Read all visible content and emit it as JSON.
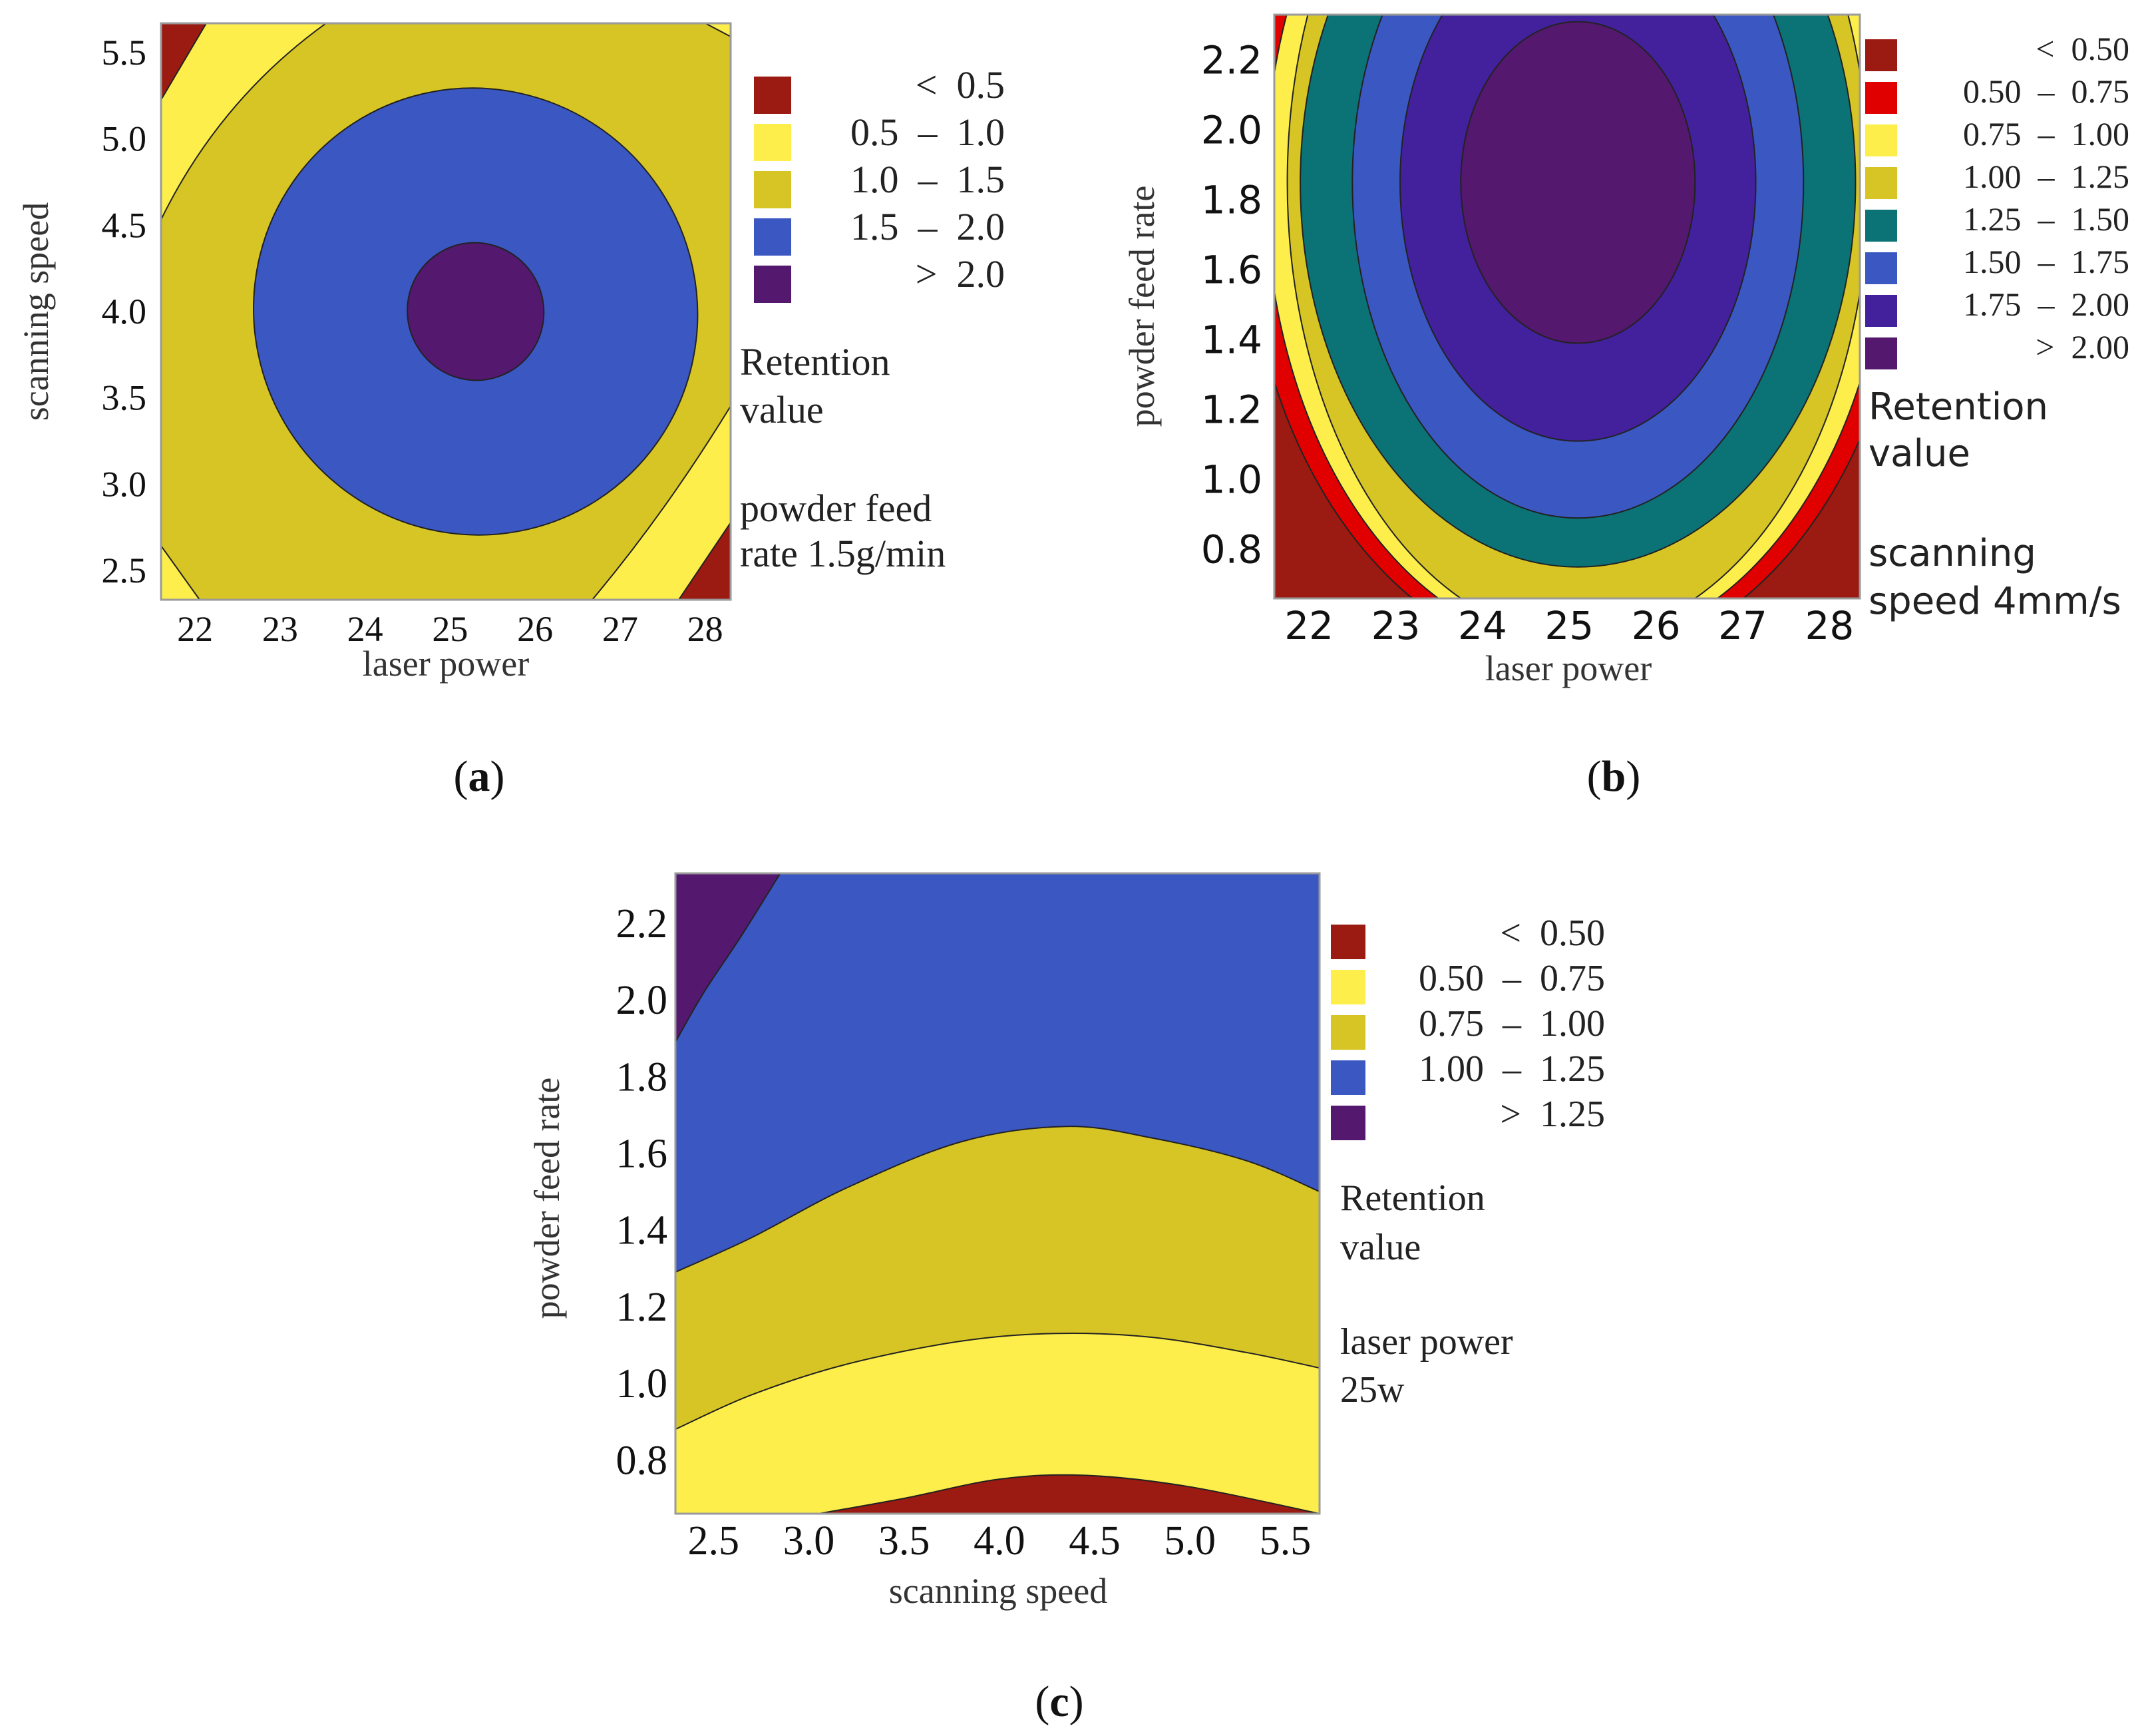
{
  "figure": {
    "panel_labels": [
      "(a)",
      "(b)",
      "(c)"
    ],
    "panel_label_letters": [
      "a",
      "b",
      "c"
    ]
  },
  "chart_data": [
    {
      "id": "a",
      "type": "contour",
      "xlabel": "laser power",
      "ylabel": "scanning speed",
      "x_ticks": [
        "22",
        "23",
        "24",
        "25",
        "26",
        "27",
        "28"
      ],
      "y_ticks": [
        "2.5",
        "3.0",
        "3.5",
        "4.0",
        "4.5",
        "5.0",
        "5.5"
      ],
      "xlim": [
        21.6,
        28.3
      ],
      "ylim": [
        2.33,
        5.67
      ],
      "legend_title": [
        "Retention",
        "value"
      ],
      "legend": [
        {
          "range": "<  0.5",
          "color": "#9b1a12"
        },
        {
          "range": "0.5  –  1.0",
          "color": "#fdee4c"
        },
        {
          "range": "1.0  –  1.5",
          "color": "#d6c524"
        },
        {
          "range": "1.5  –  2.0",
          "color": "#3b57c2"
        },
        {
          "range": ">  2.0",
          "color": "#54186e"
        }
      ],
      "hold_note": [
        "powder feed",
        "rate 1.5g/min"
      ],
      "contours": {
        "level_1_5": {
          "center": [
            25.3,
            4.0
          ],
          "x_radius": 2.6,
          "y_radius": 1.3,
          "rotation_deg": -33
        },
        "level_2_0": {
          "center": [
            25.3,
            4.0
          ],
          "x_radius": 0.8,
          "y_radius": 0.4,
          "rotation_deg": -30
        }
      }
    },
    {
      "id": "b",
      "type": "contour",
      "xlabel": "laser power",
      "ylabel": "powder feed rate",
      "x_ticks": [
        "22",
        "23",
        "24",
        "25",
        "26",
        "27",
        "28"
      ],
      "y_ticks": [
        "0.8",
        "1.0",
        "1.2",
        "1.4",
        "1.6",
        "1.8",
        "2.0",
        "2.2"
      ],
      "xlim": [
        21.6,
        28.35
      ],
      "ylim": [
        0.66,
        2.33
      ],
      "legend_title": [
        "Retention",
        "value"
      ],
      "legend": [
        {
          "range": "<  0.50",
          "color": "#9b1a12"
        },
        {
          "range": "0.50  –  0.75",
          "color": "#e00000"
        },
        {
          "range": "0.75  –  1.00",
          "color": "#fdee4c"
        },
        {
          "range": "1.00  –  1.25",
          "color": "#d6c524"
        },
        {
          "range": "1.25  –  1.50",
          "color": "#0b7276"
        },
        {
          "range": "1.50  –  1.75",
          "color": "#3b57c2"
        },
        {
          "range": "1.75  –  2.00",
          "color": "#43209c"
        },
        {
          "range": ">  2.00",
          "color": "#54186e"
        }
      ],
      "hold_note": [
        "scanning",
        "speed 4mm/s"
      ],
      "contours": {
        "level_0_50": {
          "center": [
            25.1,
            1.85
          ],
          "x_radius": 3.85,
          "y_radius": 1.37
        },
        "level_0_75": {
          "center": [
            25.1,
            1.85
          ],
          "x_radius": 3.6,
          "y_radius": 1.33
        },
        "level_1_00": {
          "center": [
            25.1,
            1.85
          ],
          "x_radius": 3.35,
          "y_radius": 1.3
        },
        "level_1_25": {
          "center": [
            25.1,
            1.85
          ],
          "x_radius": 3.2,
          "y_radius": 1.1
        },
        "level_1_50": {
          "center": [
            25.1,
            1.85
          ],
          "x_radius": 2.6,
          "y_radius": 0.96
        },
        "level_1_75": {
          "center": [
            25.1,
            1.85
          ],
          "x_radius": 2.05,
          "y_radius": 0.74
        },
        "level_2_00": {
          "center": [
            25.1,
            1.85
          ],
          "x_radius": 1.35,
          "y_radius": 0.46
        }
      }
    },
    {
      "id": "c",
      "type": "contour",
      "xlabel": "scanning speed",
      "ylabel": "powder feed rate",
      "x_ticks": [
        "2.5",
        "3.0",
        "3.5",
        "4.0",
        "4.5",
        "5.0",
        "5.5"
      ],
      "y_ticks": [
        "0.8",
        "1.0",
        "1.2",
        "1.4",
        "1.6",
        "1.8",
        "2.0",
        "2.2"
      ],
      "xlim": [
        2.3,
        5.68
      ],
      "ylim": [
        0.66,
        2.33
      ],
      "legend_title": [
        "Retention",
        "value"
      ],
      "legend": [
        {
          "range": "<  0.50",
          "color": "#9b1a12"
        },
        {
          "range": "0.50  –  0.75",
          "color": "#fdee4c"
        },
        {
          "range": "0.75  –  1.00",
          "color": "#d6c524"
        },
        {
          "range": "1.00  –  1.25",
          "color": "#3b57c2"
        },
        {
          "range": ">  1.25",
          "color": "#54186e"
        }
      ],
      "hold_note": [
        "laser power",
        "25w"
      ],
      "contours": {
        "level_0_50": [
          [
            3.05,
            0.66
          ],
          [
            3.5,
            0.7
          ],
          [
            4.0,
            0.75
          ],
          [
            4.45,
            0.76
          ],
          [
            5.0,
            0.73
          ],
          [
            5.68,
            0.66
          ]
        ],
        "level_0_75": [
          [
            2.3,
            0.88
          ],
          [
            2.7,
            0.97
          ],
          [
            3.2,
            1.05
          ],
          [
            3.8,
            1.11
          ],
          [
            4.3,
            1.13
          ],
          [
            4.8,
            1.12
          ],
          [
            5.3,
            1.08
          ],
          [
            5.68,
            1.04
          ]
        ],
        "level_1_00": [
          [
            2.3,
            1.29
          ],
          [
            2.7,
            1.38
          ],
          [
            3.2,
            1.51
          ],
          [
            3.8,
            1.63
          ],
          [
            4.35,
            1.67
          ],
          [
            4.8,
            1.64
          ],
          [
            5.3,
            1.58
          ],
          [
            5.68,
            1.5
          ]
        ],
        "level_1_25": [
          [
            2.3,
            1.89
          ],
          [
            2.45,
            2.02
          ],
          [
            2.65,
            2.17
          ],
          [
            2.85,
            2.33
          ]
        ]
      }
    }
  ]
}
